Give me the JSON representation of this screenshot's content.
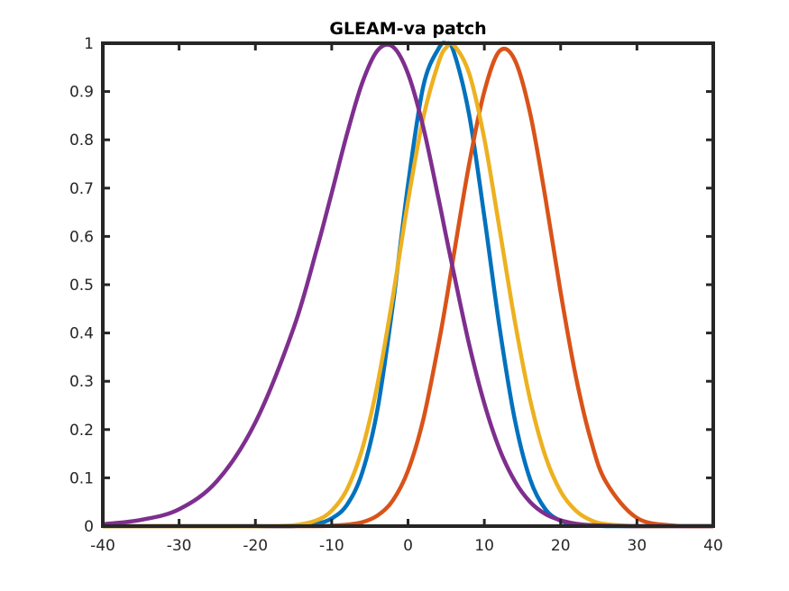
{
  "chart_data": {
    "type": "line",
    "title": "GLEAM-va patch",
    "xlabel": "",
    "ylabel": "",
    "xlim": [
      -40,
      40
    ],
    "ylim": [
      0,
      1
    ],
    "grid": false,
    "legend": "none",
    "x_ticks": [
      -40,
      -30,
      -20,
      -10,
      0,
      10,
      20,
      30,
      40
    ],
    "x_tick_labels": [
      "-40",
      "-30",
      "-20",
      "-10",
      "0",
      "10",
      "20",
      "30",
      "40"
    ],
    "y_ticks": [
      0,
      0.1,
      0.2,
      0.3,
      0.4,
      0.5,
      0.6,
      0.7,
      0.8,
      0.9,
      1
    ],
    "y_tick_labels": [
      "0",
      "0.1",
      "0.2",
      "0.3",
      "0.4",
      "0.5",
      "0.6",
      "0.7",
      "0.8",
      "0.9",
      "1"
    ],
    "x": [
      -40,
      -35,
      -30,
      -25,
      -20,
      -15,
      -12,
      -10,
      -8,
      -6,
      -4,
      -2,
      0,
      2,
      4,
      5,
      6,
      8,
      10,
      12,
      14,
      16,
      18,
      20,
      22,
      24,
      26,
      30,
      35,
      40
    ],
    "series": [
      {
        "color": "#0072BD",
        "values": [
          0.0,
          0.0,
          0.0,
          0.0,
          0.0,
          0.0,
          0.005,
          0.016,
          0.044,
          0.111,
          0.242,
          0.457,
          0.707,
          0.911,
          0.989,
          1.0,
          0.982,
          0.853,
          0.641,
          0.411,
          0.22,
          0.097,
          0.035,
          0.011,
          0.003,
          0.001,
          0.0,
          0.0,
          0.0,
          0.0
        ]
      },
      {
        "color": "#D95319",
        "values": [
          0.0,
          0.0,
          0.0,
          0.0,
          0.0,
          0.0,
          0.0,
          0.001,
          0.003,
          0.008,
          0.022,
          0.053,
          0.115,
          0.221,
          0.377,
          0.466,
          0.562,
          0.749,
          0.9,
          0.984,
          0.965,
          0.855,
          0.68,
          0.484,
          0.309,
          0.176,
          0.09,
          0.017,
          0.001,
          0.0
        ]
      },
      {
        "color": "#EDB120",
        "values": [
          0.0,
          0.0,
          0.0,
          0.0,
          0.0,
          0.002,
          0.012,
          0.032,
          0.076,
          0.16,
          0.294,
          0.474,
          0.673,
          0.846,
          0.96,
          0.991,
          0.996,
          0.938,
          0.802,
          0.615,
          0.424,
          0.262,
          0.145,
          0.072,
          0.032,
          0.012,
          0.004,
          0.0,
          0.0,
          0.0
        ]
      },
      {
        "color": "#7E2F8E",
        "values": [
          0.004,
          0.013,
          0.035,
          0.094,
          0.215,
          0.41,
          0.571,
          0.69,
          0.812,
          0.918,
          0.985,
          0.993,
          0.937,
          0.826,
          0.678,
          0.6,
          0.524,
          0.377,
          0.254,
          0.159,
          0.093,
          0.05,
          0.025,
          0.012,
          0.005,
          0.002,
          0.001,
          0.0,
          0.0,
          0.0
        ]
      }
    ]
  }
}
